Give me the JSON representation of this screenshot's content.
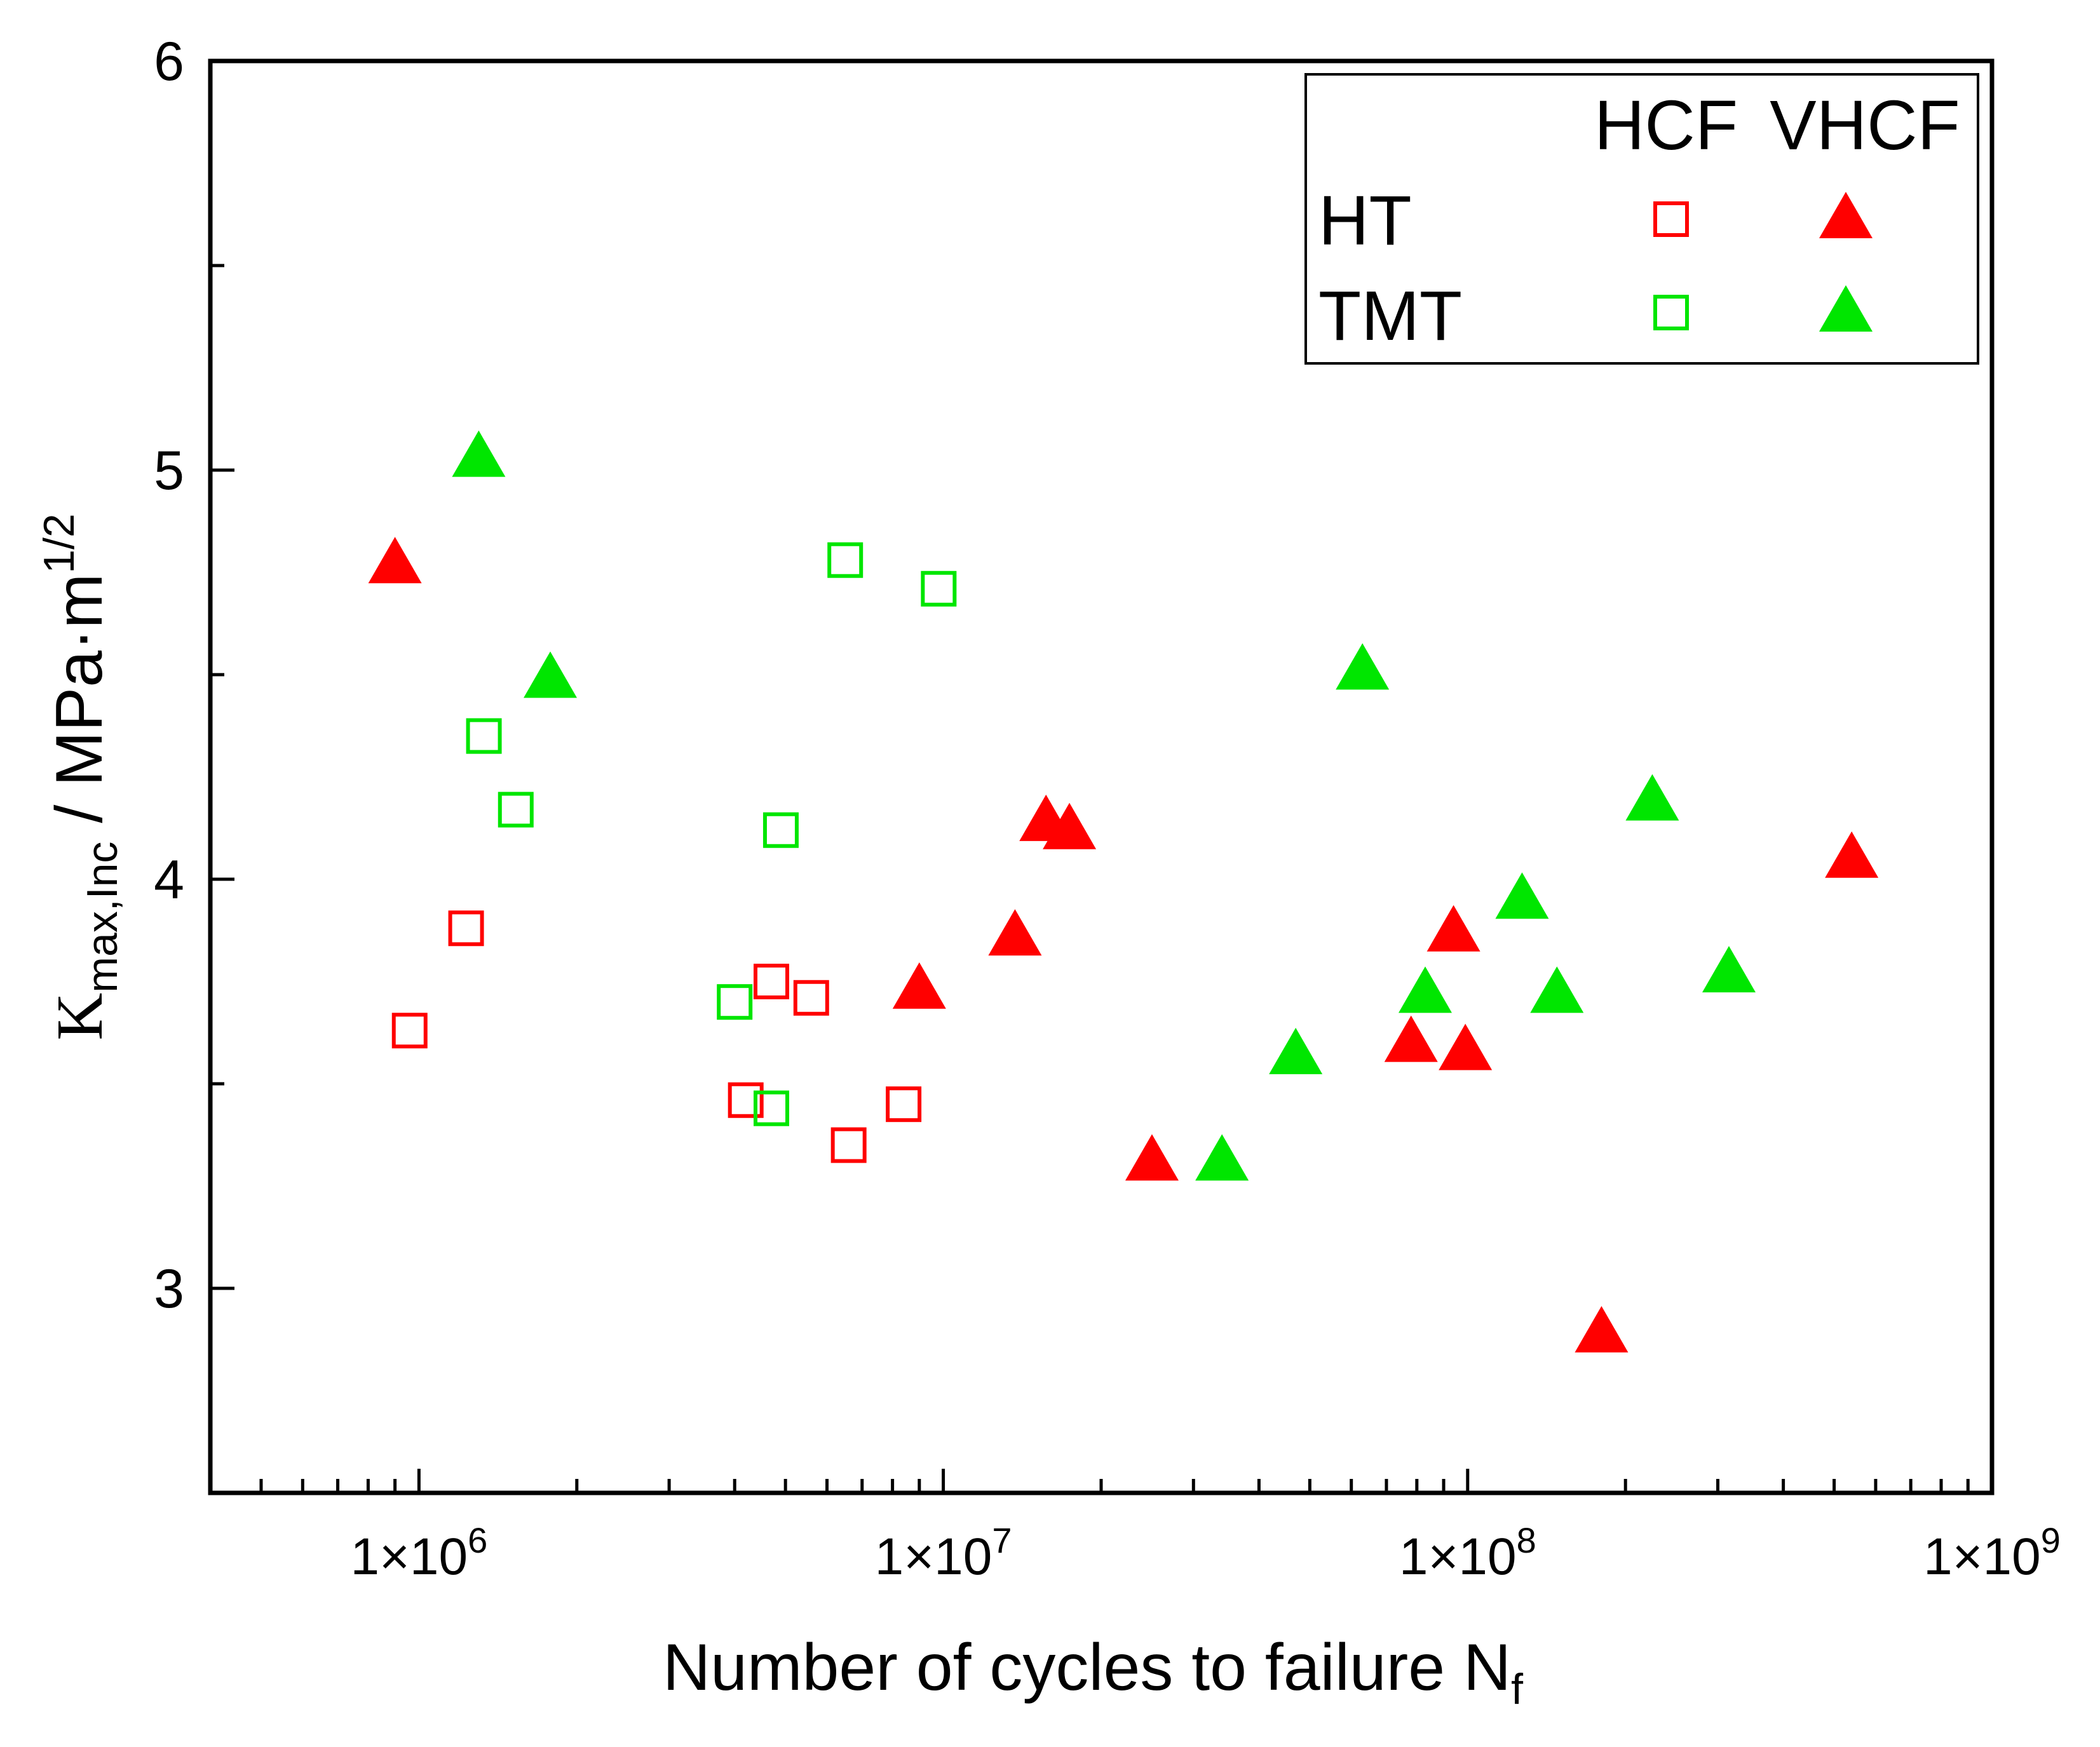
{
  "chart_data": {
    "type": "scatter",
    "x_scale": "log",
    "xlim": [
      400000,
      1000000000
    ],
    "ylim": [
      2.5,
      6
    ],
    "xlabel": "Number of cycles to failure N",
    "xlabel_sub": "f",
    "ylabel_main": "K",
    "ylabel_sub": "max,Inc",
    "ylabel_units": " / MPa·m",
    "ylabel_sup": "1/2",
    "x_ticks": [
      {
        "value": 1000000,
        "label": "1×10"
      },
      {
        "value": 10000000,
        "label": "1×10"
      },
      {
        "value": 100000000,
        "label": "1×10"
      },
      {
        "value": 1000000000,
        "label": "1×10"
      }
    ],
    "x_tick_exponents": [
      "6",
      "7",
      "8",
      "9"
    ],
    "y_ticks": [
      {
        "value": 3,
        "label": "3"
      },
      {
        "value": 4,
        "label": "4"
      },
      {
        "value": 5,
        "label": "5"
      },
      {
        "value": 6,
        "label": "6"
      }
    ],
    "legend": {
      "position": "top-right",
      "column_headers": [
        "HCF",
        "VHCF"
      ],
      "row_labels": [
        "HT",
        "TMT"
      ]
    },
    "series": [
      {
        "name": "HT HCF",
        "marker": "open-square",
        "color": "#ff0000",
        "points": [
          {
            "x": 960000,
            "y": 3.63
          },
          {
            "x": 1230000,
            "y": 3.88
          },
          {
            "x": 4200000,
            "y": 3.46
          },
          {
            "x": 4700000,
            "y": 3.75
          },
          {
            "x": 5600000,
            "y": 3.71
          },
          {
            "x": 6600000,
            "y": 3.35
          },
          {
            "x": 8400000,
            "y": 3.45
          }
        ]
      },
      {
        "name": "HT VHCF",
        "marker": "filled-triangle",
        "color": "#ff0000",
        "points": [
          {
            "x": 900000,
            "y": 4.77
          },
          {
            "x": 9000000,
            "y": 3.73
          },
          {
            "x": 13700000,
            "y": 3.86
          },
          {
            "x": 15700000,
            "y": 4.14
          },
          {
            "x": 17400000,
            "y": 4.12
          },
          {
            "x": 25000000,
            "y": 3.31
          },
          {
            "x": 78000000,
            "y": 3.6
          },
          {
            "x": 94000000,
            "y": 3.87
          },
          {
            "x": 99000000,
            "y": 3.58
          },
          {
            "x": 180000000,
            "y": 2.89
          },
          {
            "x": 540000000,
            "y": 4.05
          }
        ]
      },
      {
        "name": "TMT HCF",
        "marker": "open-square",
        "color": "#00e600",
        "points": [
          {
            "x": 1330000,
            "y": 4.35
          },
          {
            "x": 1530000,
            "y": 4.17
          },
          {
            "x": 4000000,
            "y": 3.7
          },
          {
            "x": 4700000,
            "y": 3.44
          },
          {
            "x": 4900000,
            "y": 4.12
          },
          {
            "x": 6500000,
            "y": 4.78
          },
          {
            "x": 9800000,
            "y": 4.71
          }
        ]
      },
      {
        "name": "TMT VHCF",
        "marker": "filled-triangle",
        "color": "#00e600",
        "points": [
          {
            "x": 1300000,
            "y": 5.03
          },
          {
            "x": 1780000,
            "y": 4.49
          },
          {
            "x": 34000000,
            "y": 3.31
          },
          {
            "x": 47000000,
            "y": 3.57
          },
          {
            "x": 63000000,
            "y": 4.51
          },
          {
            "x": 83000000,
            "y": 3.72
          },
          {
            "x": 127000000,
            "y": 3.95
          },
          {
            "x": 148000000,
            "y": 3.72
          },
          {
            "x": 225000000,
            "y": 4.19
          },
          {
            "x": 315000000,
            "y": 3.77
          }
        ]
      }
    ]
  }
}
